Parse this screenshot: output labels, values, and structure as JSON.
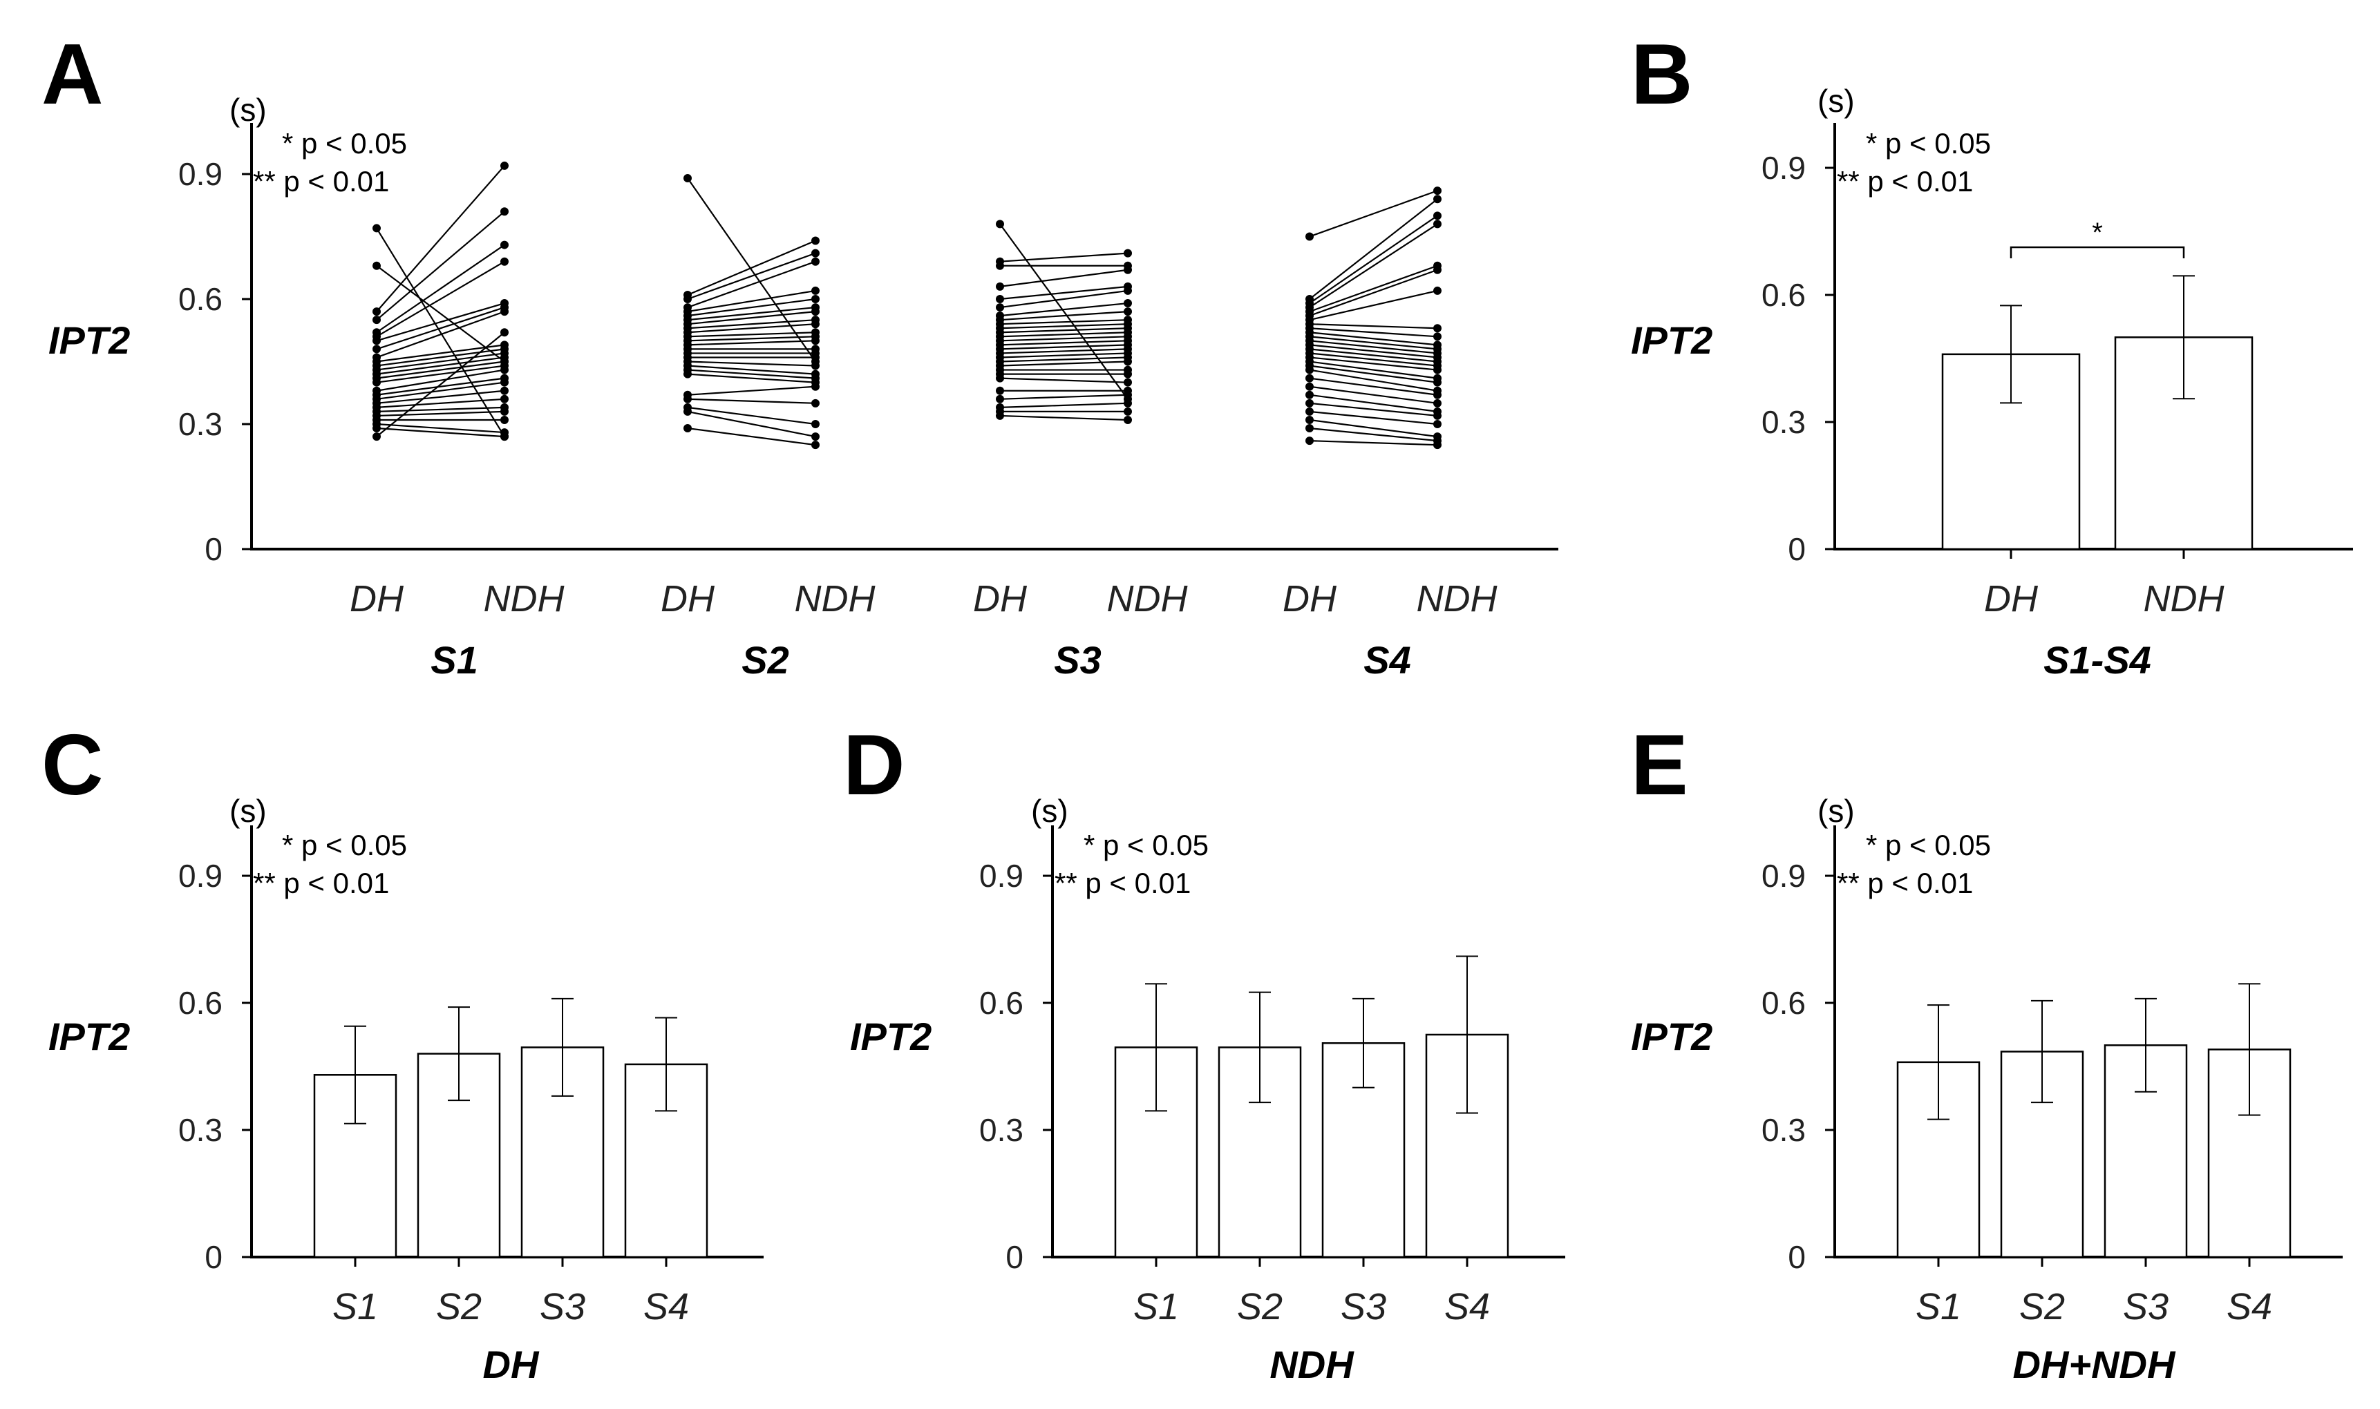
{
  "figure": {
    "panel_letters": [
      "A",
      "B",
      "C",
      "D",
      "E"
    ],
    "unit": "(s)",
    "sig_note_1": "* p < 0.05",
    "sig_note_2": "** p < 0.01",
    "ylabel": "IPT2"
  },
  "chart_data": [
    {
      "panel": "A",
      "type": "scatter",
      "subtype": "paired-lines",
      "ylabel": "IPT2",
      "unit": "(s)",
      "ylim": [
        0,
        1.0
      ],
      "yticks": [
        "0",
        "0.3",
        "0.6",
        "0.9"
      ],
      "ytick_values": [
        0,
        0.3,
        0.6,
        0.9
      ],
      "groups": [
        {
          "name": "S1",
          "categories": [
            "DH",
            "NDH"
          ],
          "pairs": [
            [
              0.77,
              0.27
            ],
            [
              0.68,
              0.45
            ],
            [
              0.57,
              0.92
            ],
            [
              0.55,
              0.81
            ],
            [
              0.52,
              0.73
            ],
            [
              0.51,
              0.69
            ],
            [
              0.5,
              0.59
            ],
            [
              0.48,
              0.58
            ],
            [
              0.46,
              0.57
            ],
            [
              0.45,
              0.49
            ],
            [
              0.44,
              0.48
            ],
            [
              0.43,
              0.47
            ],
            [
              0.42,
              0.46
            ],
            [
              0.41,
              0.45
            ],
            [
              0.4,
              0.44
            ],
            [
              0.38,
              0.43
            ],
            [
              0.37,
              0.41
            ],
            [
              0.36,
              0.4
            ],
            [
              0.35,
              0.38
            ],
            [
              0.34,
              0.36
            ],
            [
              0.33,
              0.34
            ],
            [
              0.32,
              0.33
            ],
            [
              0.31,
              0.31
            ],
            [
              0.3,
              0.28
            ],
            [
              0.29,
              0.27
            ],
            [
              0.27,
              0.52
            ]
          ]
        },
        {
          "name": "S2",
          "categories": [
            "DH",
            "NDH"
          ],
          "pairs": [
            [
              0.89,
              0.45
            ],
            [
              0.61,
              0.74
            ],
            [
              0.6,
              0.71
            ],
            [
              0.58,
              0.69
            ],
            [
              0.57,
              0.62
            ],
            [
              0.56,
              0.6
            ],
            [
              0.55,
              0.58
            ],
            [
              0.54,
              0.57
            ],
            [
              0.53,
              0.55
            ],
            [
              0.52,
              0.54
            ],
            [
              0.51,
              0.52
            ],
            [
              0.5,
              0.51
            ],
            [
              0.49,
              0.5
            ],
            [
              0.48,
              0.48
            ],
            [
              0.47,
              0.47
            ],
            [
              0.46,
              0.46
            ],
            [
              0.45,
              0.44
            ],
            [
              0.44,
              0.42
            ],
            [
              0.43,
              0.41
            ],
            [
              0.42,
              0.4
            ],
            [
              0.37,
              0.39
            ],
            [
              0.36,
              0.35
            ],
            [
              0.34,
              0.3
            ],
            [
              0.33,
              0.27
            ],
            [
              0.29,
              0.25
            ]
          ]
        },
        {
          "name": "S3",
          "categories": [
            "DH",
            "NDH"
          ],
          "pairs": [
            [
              0.78,
              0.36
            ],
            [
              0.69,
              0.71
            ],
            [
              0.68,
              0.68
            ],
            [
              0.63,
              0.67
            ],
            [
              0.6,
              0.63
            ],
            [
              0.58,
              0.62
            ],
            [
              0.56,
              0.59
            ],
            [
              0.55,
              0.57
            ],
            [
              0.54,
              0.55
            ],
            [
              0.53,
              0.54
            ],
            [
              0.52,
              0.53
            ],
            [
              0.51,
              0.52
            ],
            [
              0.5,
              0.51
            ],
            [
              0.49,
              0.5
            ],
            [
              0.48,
              0.49
            ],
            [
              0.47,
              0.48
            ],
            [
              0.46,
              0.47
            ],
            [
              0.45,
              0.46
            ],
            [
              0.44,
              0.45
            ],
            [
              0.43,
              0.43
            ],
            [
              0.42,
              0.42
            ],
            [
              0.41,
              0.4
            ],
            [
              0.38,
              0.38
            ],
            [
              0.36,
              0.37
            ],
            [
              0.34,
              0.35
            ],
            [
              0.33,
              0.33
            ],
            [
              0.32,
              0.31
            ]
          ]
        },
        {
          "name": "S4",
          "categories": [
            "DH",
            "NDH"
          ],
          "pairs": [
            [
              0.75,
              0.86
            ],
            [
              0.6,
              0.84
            ],
            [
              0.59,
              0.8
            ],
            [
              0.58,
              0.78
            ],
            [
              0.57,
              0.68
            ],
            [
              0.56,
              0.67
            ],
            [
              0.55,
              0.62
            ],
            [
              0.54,
              0.53
            ],
            [
              0.53,
              0.51
            ],
            [
              0.52,
              0.49
            ],
            [
              0.51,
              0.48
            ],
            [
              0.5,
              0.47
            ],
            [
              0.49,
              0.46
            ],
            [
              0.48,
              0.45
            ],
            [
              0.47,
              0.44
            ],
            [
              0.46,
              0.43
            ],
            [
              0.45,
              0.41
            ],
            [
              0.44,
              0.4
            ],
            [
              0.43,
              0.38
            ],
            [
              0.41,
              0.37
            ],
            [
              0.39,
              0.35
            ],
            [
              0.37,
              0.33
            ],
            [
              0.35,
              0.32
            ],
            [
              0.33,
              0.3
            ],
            [
              0.31,
              0.27
            ],
            [
              0.29,
              0.26
            ],
            [
              0.26,
              0.25
            ]
          ]
        }
      ]
    },
    {
      "panel": "B",
      "type": "bar",
      "ylabel": "IPT2",
      "unit": "(s)",
      "xlabel": "S1-S4",
      "ylim": [
        0,
        1.0
      ],
      "yticks": [
        "0",
        "0.3",
        "0.6",
        "0.9"
      ],
      "ytick_values": [
        0,
        0.3,
        0.6,
        0.9
      ],
      "categories": [
        "DH",
        "NDH"
      ],
      "values": [
        0.46,
        0.5
      ],
      "errors": [
        0.115,
        0.145
      ],
      "significance": [
        {
          "between": [
            0,
            1
          ],
          "label": "*"
        }
      ]
    },
    {
      "panel": "C",
      "type": "bar",
      "ylabel": "IPT2",
      "unit": "(s)",
      "xlabel": "DH",
      "ylim": [
        0,
        1.0
      ],
      "yticks": [
        "0",
        "0.3",
        "0.6",
        "0.9"
      ],
      "ytick_values": [
        0,
        0.3,
        0.6,
        0.9
      ],
      "categories": [
        "S1",
        "S2",
        "S3",
        "S4"
      ],
      "values": [
        0.43,
        0.48,
        0.495,
        0.455
      ],
      "errors": [
        0.115,
        0.11,
        0.115,
        0.11
      ],
      "significance": []
    },
    {
      "panel": "D",
      "type": "bar",
      "ylabel": "IPT2",
      "unit": "(s)",
      "xlabel": "NDH",
      "ylim": [
        0,
        1.0
      ],
      "yticks": [
        "0",
        "0.3",
        "0.6",
        "0.9"
      ],
      "ytick_values": [
        0,
        0.3,
        0.6,
        0.9
      ],
      "categories": [
        "S1",
        "S2",
        "S3",
        "S4"
      ],
      "values": [
        0.495,
        0.495,
        0.505,
        0.525
      ],
      "errors": [
        0.15,
        0.13,
        0.105,
        0.185
      ],
      "significance": []
    },
    {
      "panel": "E",
      "type": "bar",
      "ylabel": "IPT2",
      "unit": "(s)",
      "xlabel": "DH+NDH",
      "ylim": [
        0,
        1.0
      ],
      "yticks": [
        "0",
        "0.3",
        "0.6",
        "0.9"
      ],
      "ytick_values": [
        0,
        0.3,
        0.6,
        0.9
      ],
      "categories": [
        "S1",
        "S2",
        "S3",
        "S4"
      ],
      "values": [
        0.46,
        0.485,
        0.5,
        0.49
      ],
      "errors": [
        0.135,
        0.12,
        0.11,
        0.155
      ],
      "significance": []
    }
  ]
}
